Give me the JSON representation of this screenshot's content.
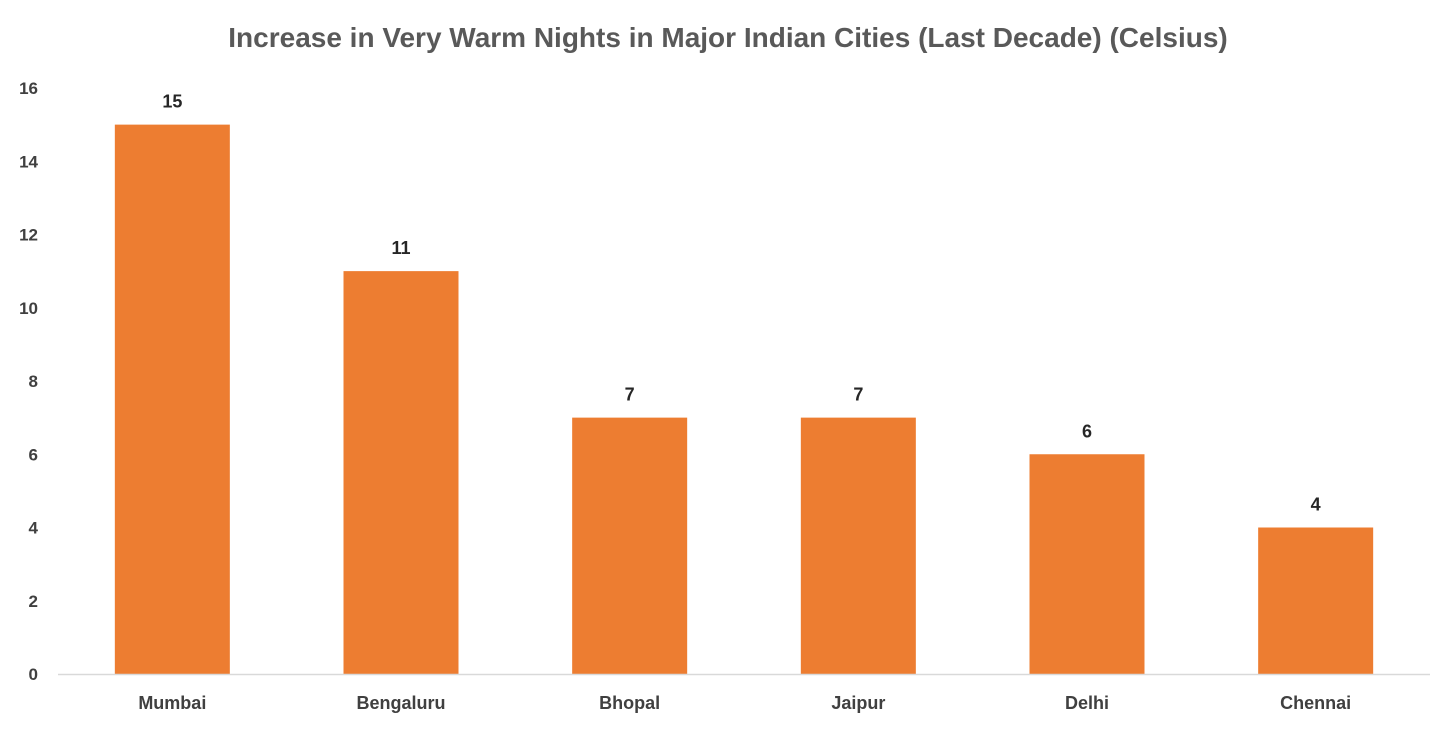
{
  "chart_data": {
    "type": "bar",
    "title": "Increase in Very Warm Nights in Major Indian Cities (Last Decade) (Celsius)",
    "xlabel": "",
    "ylabel": "",
    "categories": [
      "Mumbai",
      "Bengaluru",
      "Bhopal",
      "Jaipur",
      "Delhi",
      "Chennai"
    ],
    "values": [
      15,
      11,
      7,
      7,
      6,
      4
    ],
    "ylim": [
      0,
      16
    ],
    "yticks": [
      0,
      2,
      4,
      6,
      8,
      10,
      12,
      14,
      16
    ],
    "grid": false,
    "legend": "none",
    "bar_color": "#ED7D31",
    "axis_color": "#D9D9D9",
    "data_labels": true
  }
}
